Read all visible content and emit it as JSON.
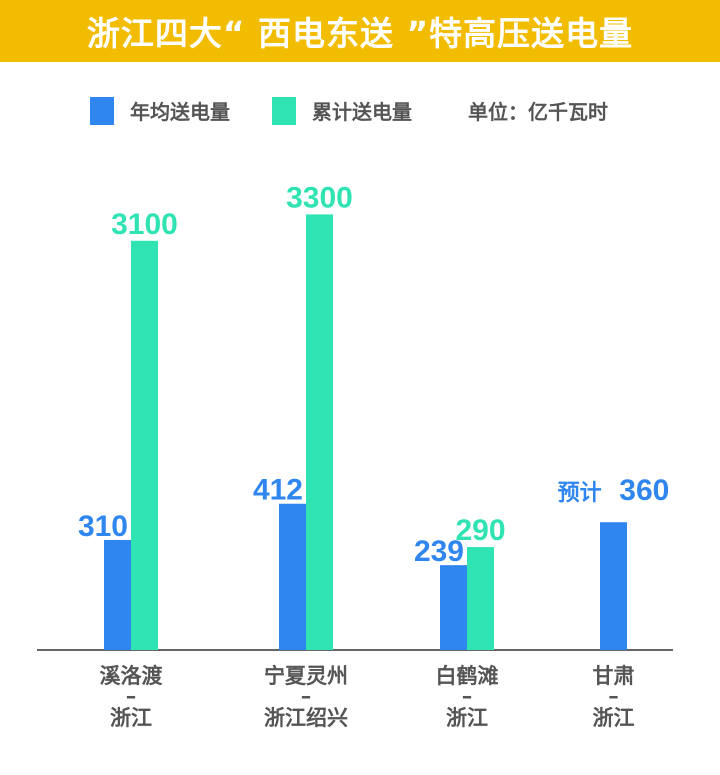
{
  "chart_data": {
    "type": "bar",
    "title": "浙江四大“ 西电东送 ”特高压送电量",
    "unit_label": "单位：亿千瓦时",
    "legend_position": "top",
    "grid": false,
    "categories": [
      {
        "line1": "溪洛渡",
        "sep": "–",
        "line2": "浙江"
      },
      {
        "line1": "宁夏灵州",
        "sep": "–",
        "line2": "浙江绍兴"
      },
      {
        "line1": "白鹤滩",
        "sep": "–",
        "line2": "浙江"
      },
      {
        "line1": "甘肃",
        "sep": "–",
        "line2": "浙江"
      }
    ],
    "series": [
      {
        "name": "年均送电量",
        "color": "#2F86EE",
        "values": [
          310,
          412,
          239,
          360
        ],
        "label_prefix": [
          "",
          "",
          "",
          "预计"
        ]
      },
      {
        "name": "累计送电量",
        "color": "#2FE4B2",
        "values": [
          3100,
          3300,
          290,
          null
        ]
      }
    ],
    "scale_note": "non-linear (values above 1000 drawn compressed)"
  },
  "colors": {
    "header_bg": "#F2BC00",
    "axis": "#666666",
    "text": "#555555"
  }
}
